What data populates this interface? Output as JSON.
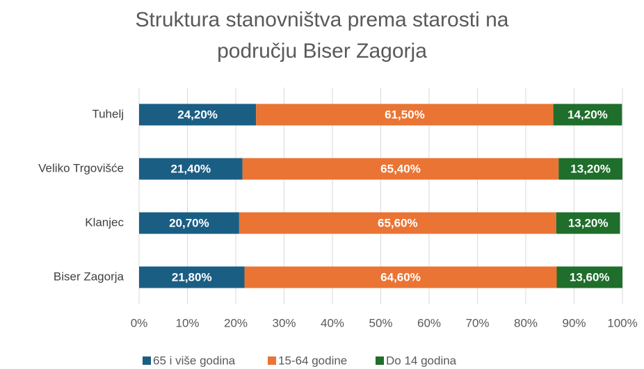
{
  "chart_data": {
    "type": "stacked_bar_horizontal",
    "title": [
      "Struktura stanovništva prema starosti na",
      "području Biser Zagorja"
    ],
    "categories": [
      "Tuhelj",
      "Veliko Trgovišće",
      "Klanjec",
      "Biser Zagorja"
    ],
    "series": [
      {
        "name": "65 i više godina",
        "color": "#1b5e84",
        "values": [
          24.2,
          21.4,
          20.7,
          21.8
        ],
        "value_labels": [
          "24,20%",
          "21,40%",
          "20,70%",
          "21,80%"
        ]
      },
      {
        "name": "15-64 godine",
        "color": "#ea7434",
        "values": [
          61.5,
          65.4,
          65.6,
          64.6
        ],
        "value_labels": [
          "61,50%",
          "65,40%",
          "65,60%",
          "64,60%"
        ]
      },
      {
        "name": "Do 14 godina",
        "color": "#1f6e2b",
        "values": [
          14.2,
          13.2,
          13.2,
          13.6
        ],
        "value_labels": [
          "14,20%",
          "13,20%",
          "13,20%",
          "13,60%"
        ]
      }
    ],
    "xlim": [
      0,
      100
    ],
    "xticks": [
      {
        "value": 0,
        "label": "0%"
      },
      {
        "value": 10,
        "label": "10%"
      },
      {
        "value": 20,
        "label": "20%"
      },
      {
        "value": 30,
        "label": "30%"
      },
      {
        "value": 40,
        "label": "40%"
      },
      {
        "value": 50,
        "label": "50%"
      },
      {
        "value": 60,
        "label": "60%"
      },
      {
        "value": 70,
        "label": "70%"
      },
      {
        "value": 80,
        "label": "80%"
      },
      {
        "value": 90,
        "label": "90%"
      },
      {
        "value": 100,
        "label": "100%"
      }
    ],
    "grid": true,
    "legend": "bottom"
  }
}
